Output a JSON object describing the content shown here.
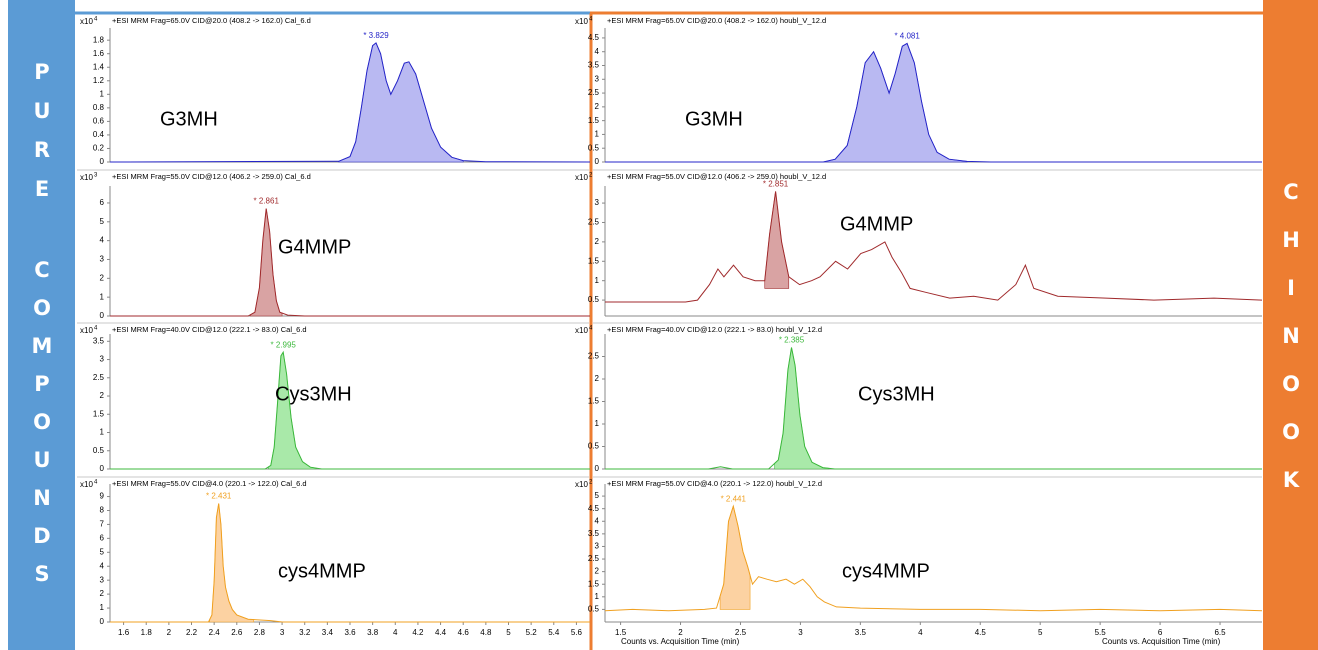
{
  "left_label": [
    "PURE",
    "COMPOUNDS"
  ],
  "right_label": "CHINOOK",
  "chart_data": [
    {
      "type": "line",
      "title": "+ESI MRM Frag=65.0V CID@20.0 (408.2 -> 162.0) Cal_6.d",
      "y_multiplier": "x10",
      "y_exponent": "4",
      "annotation": "G3MH",
      "peak_label": "* 3.829",
      "color": "#2525c8",
      "fill_color": "#b9b9f2",
      "peak_fill": {
        "start": 3.5,
        "end": 4.6,
        "base": 0
      },
      "xlim": [
        1.48,
        5.72
      ],
      "ylim": [
        0,
        1.98
      ],
      "yticks": [
        0,
        0.2,
        0.4,
        0.6,
        0.8,
        1,
        1.2,
        1.4,
        1.6,
        1.8
      ],
      "x": [
        1.48,
        3.5,
        3.6,
        3.65,
        3.7,
        3.75,
        3.8,
        3.83,
        3.87,
        3.92,
        3.96,
        4.02,
        4.08,
        4.12,
        4.18,
        4.25,
        4.32,
        4.4,
        4.5,
        4.6,
        4.8,
        5.72
      ],
      "values": [
        0,
        0.01,
        0.08,
        0.3,
        0.8,
        1.35,
        1.72,
        1.76,
        1.6,
        1.2,
        1.0,
        1.2,
        1.46,
        1.48,
        1.3,
        0.9,
        0.5,
        0.22,
        0.07,
        0.02,
        0.005,
        0
      ]
    },
    {
      "type": "line",
      "title": "+ESI MRM Frag=55.0V CID@12.0 (406.2 -> 259.0) Cal_6.d",
      "y_multiplier": "x10",
      "y_exponent": "3",
      "annotation": "G4MMP",
      "peak_label": "* 2.861",
      "color": "#a02a2c",
      "fill_color": "#d9a3a3",
      "peak_fill": {
        "start": 2.72,
        "end": 3.0,
        "base": 0
      },
      "xlim": [
        1.48,
        5.72
      ],
      "ylim": [
        0,
        6.9
      ],
      "yticks": [
        0,
        1,
        2,
        3,
        4,
        5,
        6
      ],
      "x": [
        1.48,
        2.7,
        2.76,
        2.8,
        2.83,
        2.86,
        2.89,
        2.92,
        2.95,
        2.98,
        3.05,
        3.2,
        5.72
      ],
      "values": [
        0,
        0,
        0.2,
        1.5,
        4.0,
        5.7,
        4.5,
        2.2,
        0.8,
        0.2,
        0.05,
        0,
        0
      ]
    },
    {
      "type": "line",
      "title": "+ESI MRM Frag=40.0V CID@12.0 (222.1 -> 83.0) Cal_6.d",
      "y_multiplier": "x10",
      "y_exponent": "4",
      "annotation": "Cys3MH",
      "peak_label": "* 2.995",
      "color": "#3cb83c",
      "fill_color": "#a9e9a9",
      "peak_fill": {
        "start": 2.88,
        "end": 3.3,
        "base": 0
      },
      "xlim": [
        1.48,
        5.72
      ],
      "ylim": [
        0,
        3.7
      ],
      "yticks": [
        0,
        0.5,
        1,
        1.5,
        2,
        2.5,
        3,
        3.5
      ],
      "x": [
        1.48,
        2.85,
        2.9,
        2.93,
        2.96,
        2.99,
        3.01,
        3.04,
        3.08,
        3.12,
        3.18,
        3.25,
        3.35,
        5.72
      ],
      "values": [
        0,
        0,
        0.1,
        0.6,
        1.8,
        3.1,
        3.2,
        2.6,
        1.4,
        0.6,
        0.2,
        0.05,
        0,
        0
      ]
    },
    {
      "type": "line",
      "title": "+ESI MRM Frag=55.0V CID@4.0 (220.1 -> 122.0) Cal_6.d",
      "y_multiplier": "x10",
      "y_exponent": "4",
      "annotation": "cys4MMP",
      "peak_label": "* 2.431",
      "color": "#f0a020",
      "fill_color": "#fcd2a2",
      "peak_fill": {
        "start": 2.36,
        "end": 2.75,
        "base": 0
      },
      "xlim": [
        1.48,
        5.72
      ],
      "ylim": [
        0,
        9.9
      ],
      "yticks": [
        0,
        1,
        2,
        3,
        4,
        5,
        6,
        7,
        8,
        9
      ],
      "xticks": [
        1.6,
        1.8,
        2,
        2.2,
        2.4,
        2.6,
        2.8,
        3,
        3.2,
        3.4,
        3.6,
        3.8,
        4,
        4.2,
        4.4,
        4.6,
        4.8,
        5,
        5.2,
        5.4,
        5.6
      ],
      "x": [
        1.48,
        2.35,
        2.38,
        2.4,
        2.42,
        2.44,
        2.46,
        2.48,
        2.5,
        2.53,
        2.56,
        2.6,
        2.7,
        2.9,
        3.0,
        5.72
      ],
      "values": [
        0,
        0,
        0.5,
        3,
        7.5,
        8.5,
        7,
        4,
        2.5,
        1.5,
        0.9,
        0.5,
        0.2,
        0.1,
        0,
        0
      ]
    },
    {
      "type": "line",
      "title": "+ESI MRM Frag=65.0V CID@20.0 (408.2 -> 162.0) houbl_V_12.d",
      "y_multiplier": "x10",
      "y_exponent": "4",
      "annotation": "G3MH",
      "peak_label": "* 4.081",
      "color": "#2525c8",
      "fill_color": "#b9b9f2",
      "peak_fill": {
        "start": 3.4,
        "end": 4.6,
        "base": 0
      },
      "xlim": [
        1.58,
        7.06
      ],
      "ylim": [
        0,
        4.86
      ],
      "yticks": [
        0,
        0.5,
        1,
        1.5,
        2,
        2.5,
        3,
        3.5,
        4,
        4.5
      ],
      "x": [
        1.58,
        3.4,
        3.5,
        3.6,
        3.68,
        3.75,
        3.82,
        3.88,
        3.95,
        4.0,
        4.06,
        4.1,
        4.16,
        4.22,
        4.28,
        4.35,
        4.45,
        4.6,
        4.8,
        7.06
      ],
      "values": [
        0,
        0,
        0.1,
        0.6,
        2.0,
        3.6,
        4.0,
        3.4,
        2.5,
        3.2,
        4.2,
        4.3,
        3.6,
        2.2,
        1.0,
        0.35,
        0.1,
        0.02,
        0,
        0
      ]
    },
    {
      "type": "line",
      "title": "+ESI MRM Frag=55.0V CID@12.0 (406.2 -> 259.0) houbl_V_12.d",
      "y_multiplier": "x10",
      "y_exponent": "2",
      "annotation": "G4MMP",
      "peak_label": "* 2.851",
      "color": "#a02a2c",
      "fill_color": "#d9a3a3",
      "peak_fill": {
        "start": 2.76,
        "end": 2.96,
        "base": 0.8
      },
      "xlim": [
        1.43,
        6.9
      ],
      "ylim": [
        0.09,
        3.44
      ],
      "yticks": [
        0.5,
        1,
        1.5,
        2,
        2.5,
        3
      ],
      "x": [
        1.43,
        2.1,
        2.2,
        2.3,
        2.37,
        2.42,
        2.5,
        2.58,
        2.68,
        2.76,
        2.8,
        2.85,
        2.9,
        2.96,
        3.05,
        3.15,
        3.22,
        3.35,
        3.45,
        3.56,
        3.65,
        3.76,
        3.82,
        3.9,
        3.97,
        4.1,
        4.3,
        4.5,
        4.7,
        4.85,
        4.93,
        5.0,
        5.2,
        5.6,
        6.0,
        6.5,
        6.9
      ],
      "values": [
        0.45,
        0.45,
        0.5,
        0.9,
        1.3,
        1.1,
        1.4,
        1.1,
        1.0,
        1.0,
        2.2,
        3.3,
        2.0,
        1.1,
        0.9,
        1.0,
        1.1,
        1.5,
        1.3,
        1.7,
        1.8,
        2.0,
        1.6,
        1.2,
        0.8,
        0.7,
        0.55,
        0.6,
        0.5,
        0.9,
        1.4,
        0.8,
        0.6,
        0.55,
        0.5,
        0.55,
        0.5
      ]
    },
    {
      "type": "line",
      "title": "+ESI MRM Frag=40.0V CID@12.0 (222.1 -> 83.0) houbl_V_12.d",
      "y_multiplier": "x10",
      "y_exponent": "4",
      "annotation": "Cys3MH",
      "peak_label": "* 2.385",
      "color": "#3cb83c",
      "fill_color": "#a9e9a9",
      "peak_fill": {
        "start": 2.25,
        "end": 2.7,
        "base": 0
      },
      "xlim": [
        0.84,
        6.3
      ],
      "ylim": [
        0,
        3.0
      ],
      "yticks": [
        0,
        0.5,
        1,
        1.5,
        2,
        2.5
      ],
      "x": [
        0.84,
        1.7,
        1.8,
        1.9,
        2.2,
        2.28,
        2.32,
        2.36,
        2.39,
        2.42,
        2.46,
        2.5,
        2.56,
        2.65,
        2.75,
        6.3
      ],
      "values": [
        0,
        0,
        0.05,
        0,
        0,
        0.2,
        0.8,
        2.2,
        2.7,
        2.3,
        1.2,
        0.5,
        0.15,
        0.03,
        0,
        0
      ]
    },
    {
      "type": "line",
      "title": "+ESI MRM Frag=55.0V CID@4.0 (220.1 -> 122.0) houbl_V_12.d",
      "y_multiplier": "x10",
      "y_exponent": "2",
      "annotation": "cys4MMP",
      "peak_label": "* 2.441",
      "color": "#f0a020",
      "fill_color": "#fcd2a2",
      "peak_fill": {
        "start": 2.33,
        "end": 2.58,
        "base": 0.5
      },
      "xlim": [
        1.37,
        6.85
      ],
      "ylim": [
        0,
        5.48
      ],
      "yticks": [
        0.5,
        1,
        1.5,
        2,
        2.5,
        3,
        3.5,
        4,
        4.5,
        5
      ],
      "xticks": [
        1.5,
        2,
        2.5,
        3,
        3.5,
        4,
        4.5,
        5,
        5.5,
        6,
        6.5
      ],
      "xlabel": "Counts vs. Acquisition Time (min)",
      "x": [
        1.37,
        1.6,
        1.9,
        2.2,
        2.3,
        2.36,
        2.4,
        2.44,
        2.48,
        2.52,
        2.56,
        2.6,
        2.65,
        2.72,
        2.8,
        2.88,
        2.95,
        3.02,
        3.08,
        3.14,
        3.2,
        3.3,
        3.5,
        4.0,
        4.5,
        5.0,
        5.5,
        6.0,
        6.5,
        6.85
      ],
      "values": [
        0.45,
        0.5,
        0.45,
        0.5,
        0.55,
        1.5,
        4.0,
        4.6,
        3.8,
        2.8,
        2.2,
        1.5,
        1.8,
        1.7,
        1.6,
        1.7,
        1.5,
        1.7,
        1.4,
        1.0,
        0.8,
        0.6,
        0.55,
        0.5,
        0.5,
        0.45,
        0.5,
        0.45,
        0.5,
        0.45
      ]
    }
  ]
}
